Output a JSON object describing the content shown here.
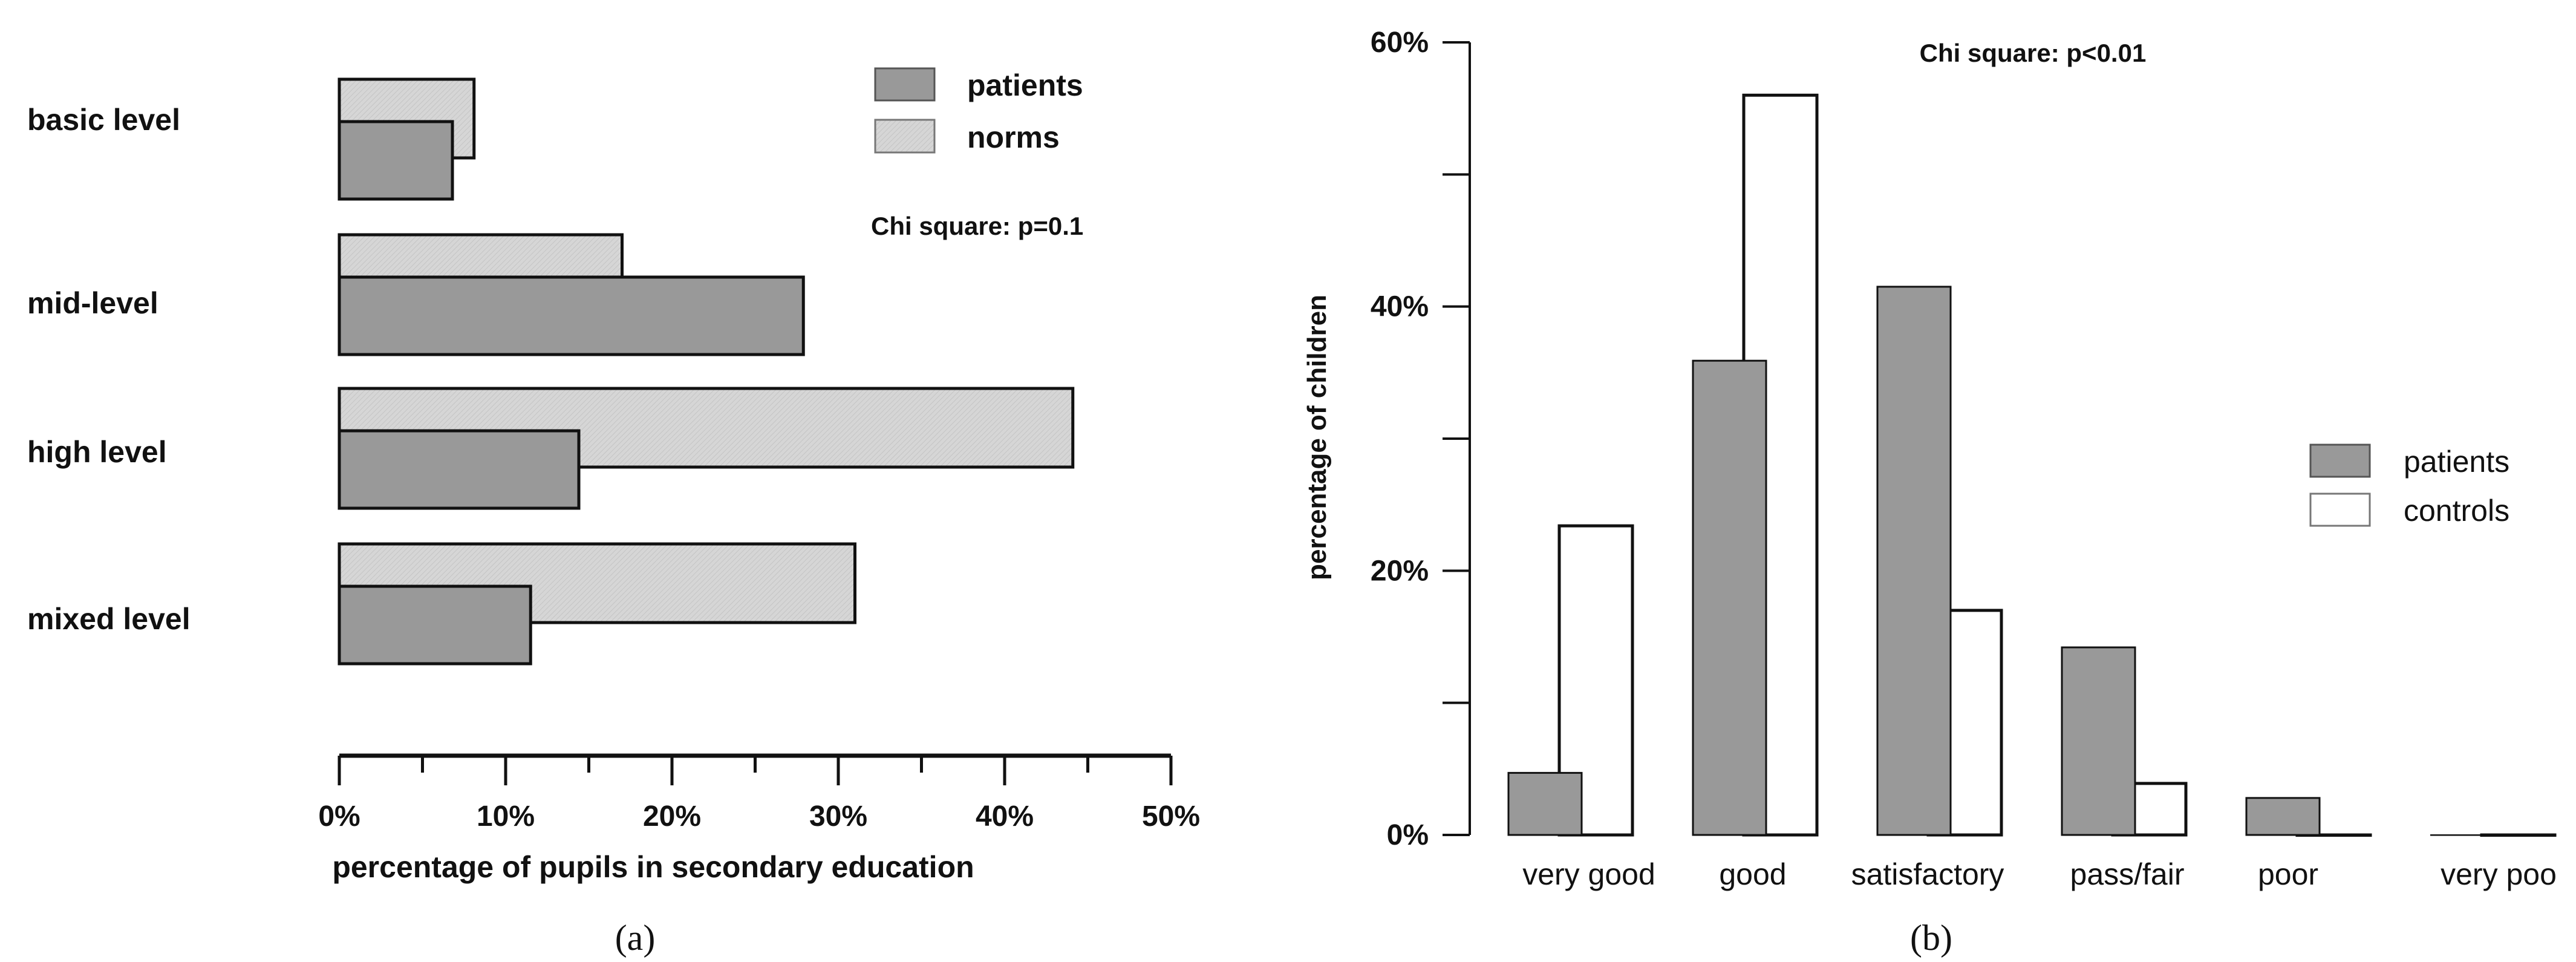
{
  "chart_data": [
    {
      "type": "bar",
      "orientation": "horizontal",
      "panel_label": "(a)",
      "categories": [
        "basic level",
        "mid-level",
        "high level",
        "mixed level"
      ],
      "series": [
        {
          "name": "patients",
          "values": [
            6.8,
            27.9,
            14.4,
            11.5
          ],
          "color": "#999999"
        },
        {
          "name": "norms",
          "values": [
            8.1,
            17.0,
            44.1,
            31.0
          ],
          "color": "#d4d4d4"
        }
      ],
      "annotation": "Chi square: p=0.1",
      "xlabel": "percentage of pupils in secondary education",
      "ylabel": "",
      "xlim": [
        0,
        50
      ],
      "xticks": [
        "0%",
        "10%",
        "20%",
        "30%",
        "40%",
        "50%"
      ],
      "legend": "top-right",
      "grid": false
    },
    {
      "type": "bar",
      "orientation": "vertical",
      "panel_label": "(b)",
      "categories": [
        "very good",
        "good",
        "satisfactory",
        "pass/fair",
        "poor",
        "very poo"
      ],
      "series": [
        {
          "name": "patients",
          "values": [
            4.7,
            35.9,
            41.5,
            14.2,
            2.8,
            0
          ],
          "color": "#999999"
        },
        {
          "name": "controls",
          "values": [
            23.4,
            56.0,
            17.0,
            3.9,
            0,
            0
          ],
          "color": "#ffffff"
        }
      ],
      "annotation": "Chi square: p<0.01",
      "xlabel": "",
      "ylabel": "percentage of children",
      "ylim": [
        0,
        60
      ],
      "yticks": [
        "0%",
        "20%",
        "40%",
        "60%"
      ],
      "legend": "right",
      "grid": false
    }
  ]
}
